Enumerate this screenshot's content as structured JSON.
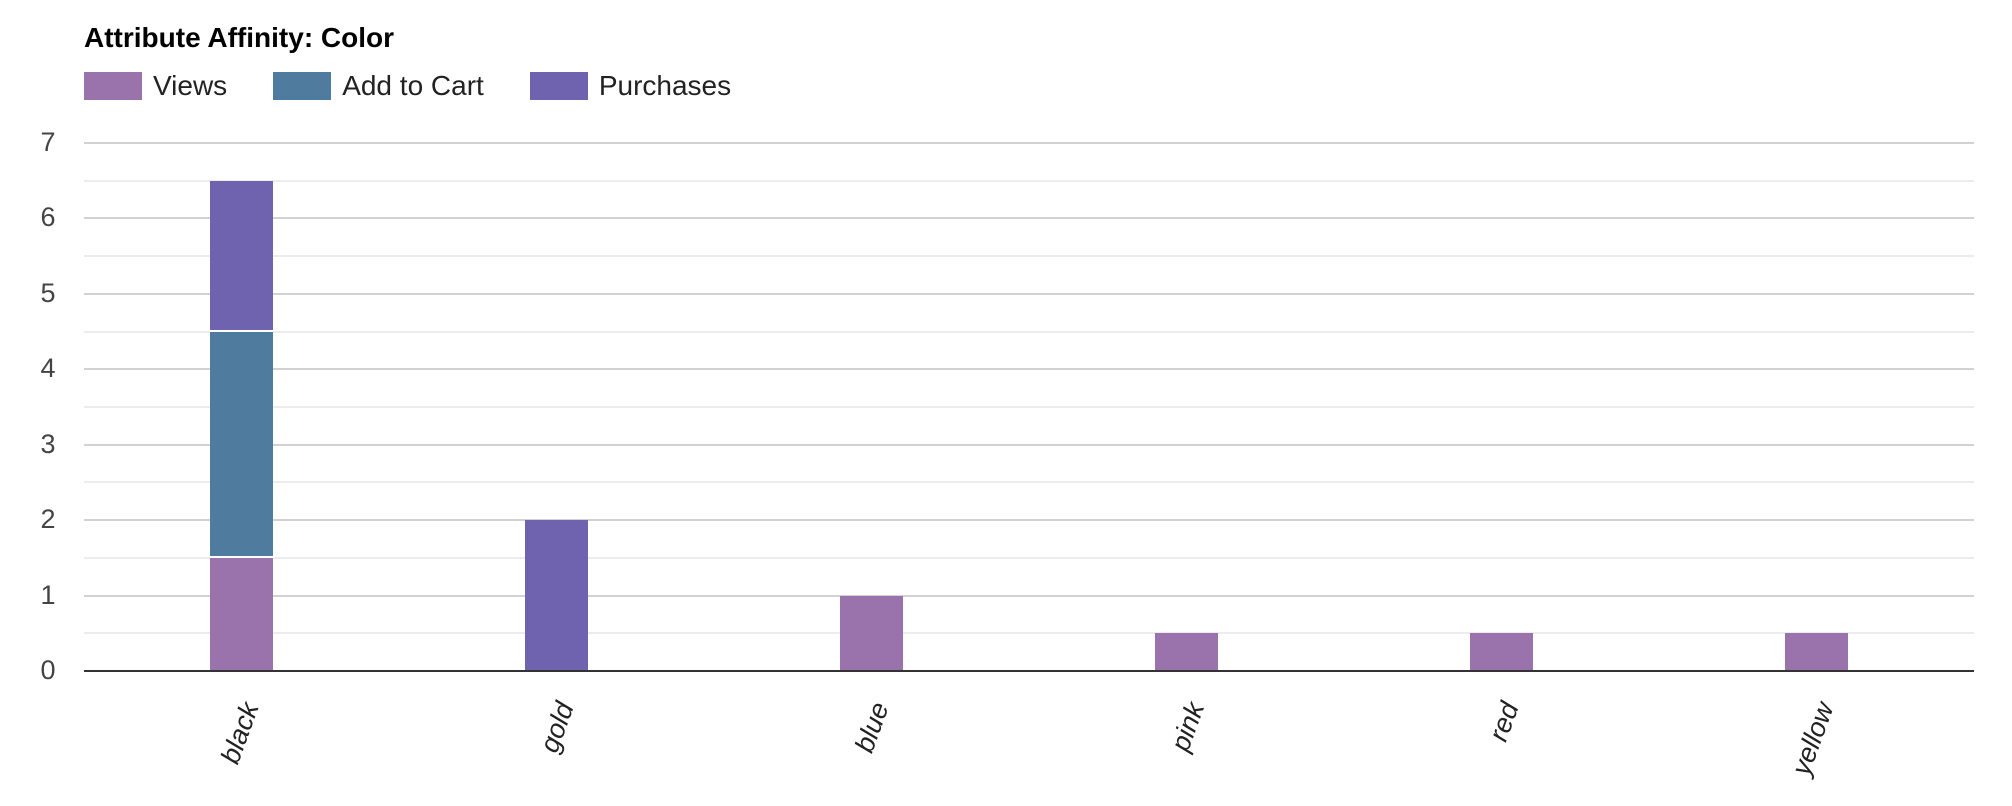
{
  "title": "Attribute Affinity: Color",
  "legend": [
    {
      "name": "Views",
      "color": "#9a73ad"
    },
    {
      "name": "Add to Cart",
      "color": "#4e7b9e"
    },
    {
      "name": "Purchases",
      "color": "#6f63b0"
    }
  ],
  "chart_data": {
    "type": "bar",
    "stacked": true,
    "title": "Attribute Affinity: Color",
    "xlabel": "",
    "ylabel": "",
    "ylim": [
      0,
      7
    ],
    "yticks": [
      0,
      1,
      2,
      3,
      4,
      5,
      6,
      7
    ],
    "grid": true,
    "legend_position": "top-left",
    "categories": [
      "black",
      "gold",
      "blue",
      "pink",
      "red",
      "yellow"
    ],
    "series": [
      {
        "name": "Views",
        "color": "#9a73ad",
        "values": [
          1.5,
          0,
          1,
          0.5,
          0.5,
          0.5
        ]
      },
      {
        "name": "Add to Cart",
        "color": "#4e7b9e",
        "values": [
          3,
          0,
          0,
          0,
          0,
          0
        ]
      },
      {
        "name": "Purchases",
        "color": "#6f63b0",
        "values": [
          2,
          2,
          0,
          0,
          0,
          0
        ]
      }
    ]
  }
}
